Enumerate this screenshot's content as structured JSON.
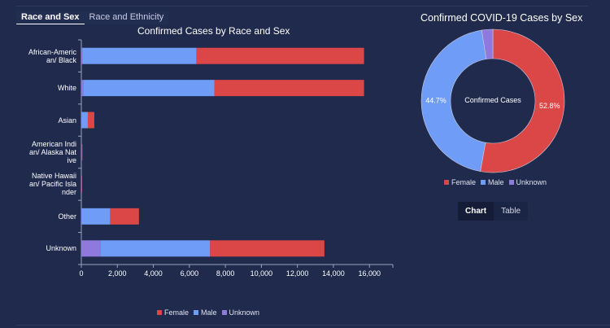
{
  "tabs": [
    {
      "label": "Race and Sex",
      "active": true
    },
    {
      "label": "Race and Ethnicity",
      "active": false
    }
  ],
  "colors": {
    "Female": "#db4646",
    "Male": "#6f9cf7",
    "Unknown": "#9079dc"
  },
  "chart_data": [
    {
      "type": "bar",
      "orientation": "horizontal",
      "stacked": true,
      "title": "Confirmed Cases by Race and Sex",
      "categories": [
        "African-American/ Black",
        "White",
        "Asian",
        "American Indian/ Alaska Native",
        "Native Hawaiian/ Pacific Islander",
        "Other",
        "Unknown"
      ],
      "series": [
        {
          "name": "Unknown",
          "values": [
            50,
            100,
            10,
            5,
            5,
            20,
            1050
          ]
        },
        {
          "name": "Male",
          "values": [
            6350,
            7300,
            350,
            25,
            15,
            1580,
            6100
          ]
        },
        {
          "name": "Female",
          "values": [
            9300,
            8300,
            360,
            30,
            15,
            1600,
            6350
          ]
        }
      ],
      "xlim": [
        0,
        17300
      ],
      "xticks": [
        0,
        2000,
        4000,
        6000,
        8000,
        10000,
        12000,
        14000,
        16000
      ],
      "xtick_labels": [
        "0",
        "2,000",
        "4,000",
        "6,000",
        "8,000",
        "10,000",
        "12,000",
        "14,000",
        "16,000"
      ],
      "legend": "bottom"
    },
    {
      "type": "pie",
      "donut": true,
      "title": "Confirmed COVID-19 Cases by Sex",
      "center_label": "Confirmed Cases",
      "labels": [
        "Female",
        "Male",
        "Unknown"
      ],
      "values": [
        52.8,
        44.7,
        2.5
      ],
      "data_labels": [
        "52.8%",
        "44.7%",
        ""
      ],
      "legend": "bottom"
    }
  ],
  "toggle": {
    "chart": "Chart",
    "table": "Table"
  }
}
